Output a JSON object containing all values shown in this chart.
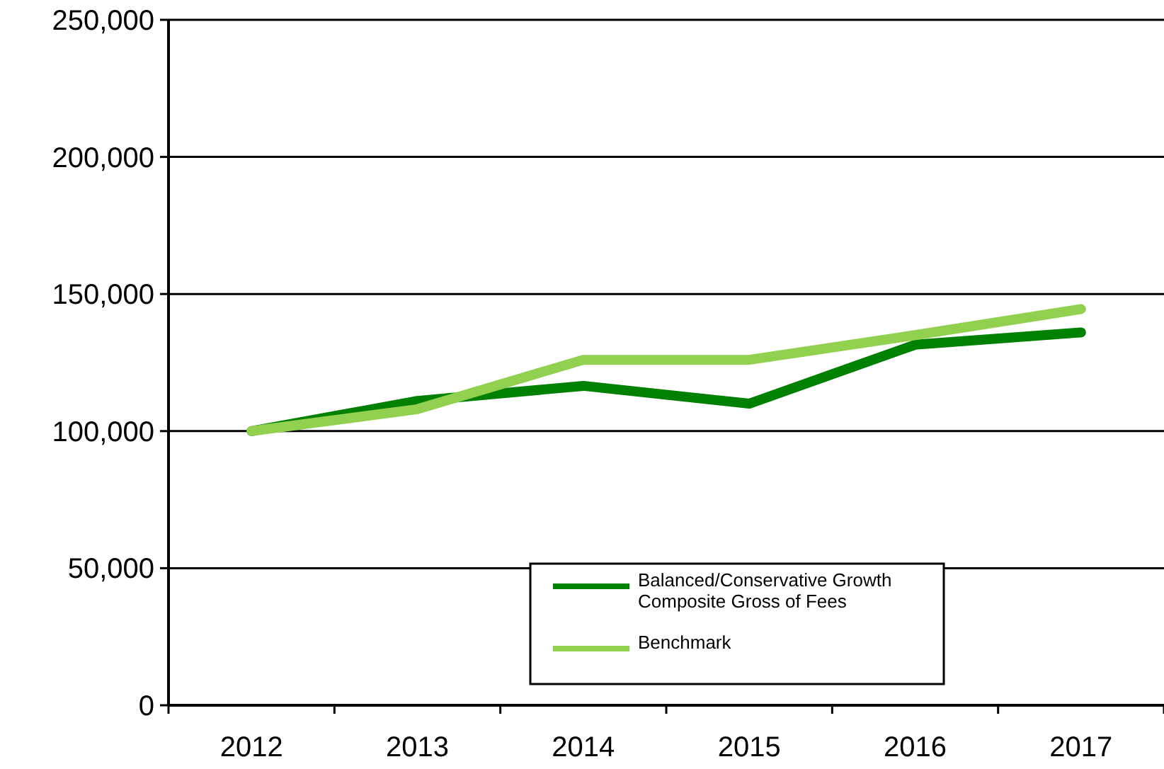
{
  "chart_data": {
    "type": "line",
    "categories": [
      "2012",
      "2013",
      "2014",
      "2015",
      "2016",
      "2017"
    ],
    "series": [
      {
        "name": "Balanced/Conservative Growth Composite Gross of Fees",
        "color": "#008000",
        "values": [
          100000,
          111000,
          116500,
          110000,
          131500,
          136000
        ]
      },
      {
        "name": "Benchmark",
        "color": "#92d050",
        "values": [
          100000,
          108000,
          126000,
          126000,
          135000,
          144500
        ]
      }
    ],
    "ylim": [
      0,
      250000
    ],
    "yticks": [
      {
        "value": 0,
        "label": "0"
      },
      {
        "value": 50000,
        "label": "50,000"
      },
      {
        "value": 100000,
        "label": "100,000"
      },
      {
        "value": 150000,
        "label": "150,000"
      },
      {
        "value": 200000,
        "label": "200,000"
      },
      {
        "value": 250000,
        "label": "250,000"
      }
    ],
    "grid": "y",
    "legend": "bottom",
    "marker": "none",
    "line_style": "solid"
  }
}
